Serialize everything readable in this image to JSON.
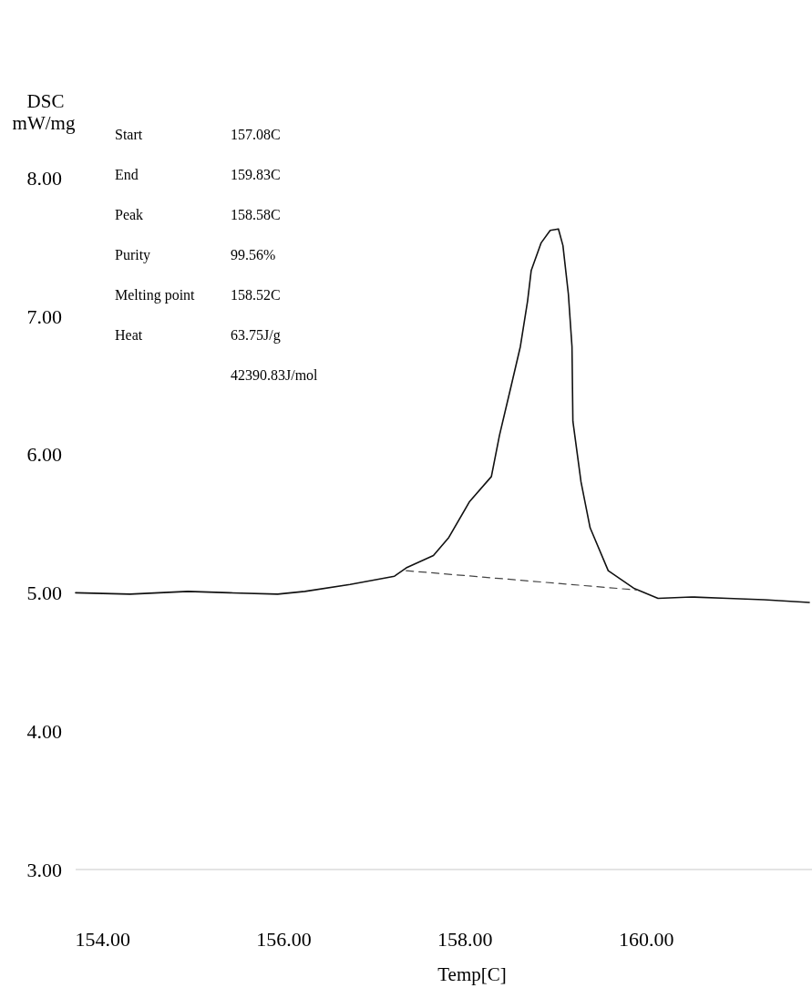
{
  "chart_data": {
    "type": "line",
    "ylabel": "DSC\nmW/mg",
    "xlabel": "Temp[C]",
    "xlim": [
      153.7,
      161.85
    ],
    "xticks": [
      {
        "value": 154,
        "label": "154.00"
      },
      {
        "value": 156,
        "label": "156.00"
      },
      {
        "value": 158,
        "label": "158.00"
      },
      {
        "value": 160,
        "label": "160.00"
      }
    ],
    "ylim": [
      3,
      8
    ],
    "yticks": [
      {
        "value": 3,
        "label": "3.00"
      },
      {
        "value": 4,
        "label": "4.00"
      },
      {
        "value": 5,
        "label": "5.00"
      },
      {
        "value": 6,
        "label": "6.00"
      },
      {
        "value": 7,
        "label": "7.00"
      },
      {
        "value": 8,
        "label": "8.00"
      }
    ],
    "series": [
      {
        "color": "#111111",
        "line_style": "solid",
        "x": [
          153.7,
          154.3,
          154.94,
          155.4,
          155.93,
          156.23,
          156.73,
          157.22,
          157.35,
          157.65,
          157.82,
          158.05,
          158.29,
          158.38,
          158.51,
          158.61,
          158.69,
          158.73,
          158.84,
          158.94,
          159.03,
          159.08,
          159.14,
          159.18,
          159.19,
          159.28,
          159.38,
          159.58,
          159.87,
          160.13,
          160.5,
          160.9,
          161.3,
          161.8
        ],
        "values": [
          5.0,
          4.99,
          5.01,
          5.0,
          4.99,
          5.01,
          5.06,
          5.12,
          5.18,
          5.27,
          5.4,
          5.66,
          5.84,
          6.14,
          6.5,
          6.78,
          7.11,
          7.33,
          7.53,
          7.62,
          7.63,
          7.51,
          7.16,
          6.78,
          6.24,
          5.8,
          5.47,
          5.16,
          5.03,
          4.96,
          4.97,
          4.96,
          4.95,
          4.93
        ]
      },
      {
        "color": "#444444",
        "line_style": "dashed",
        "x": [
          157.35,
          159.9
        ],
        "values": [
          5.16,
          5.02
        ]
      }
    ],
    "annotations": [
      "Start",
      "157.08C",
      "End",
      "159.83C",
      "Peak",
      "158.58C",
      "Purity",
      "99.56%",
      "Melting point",
      "158.52C",
      "Heat",
      "63.75J/g",
      "42390.83J/mol"
    ]
  }
}
